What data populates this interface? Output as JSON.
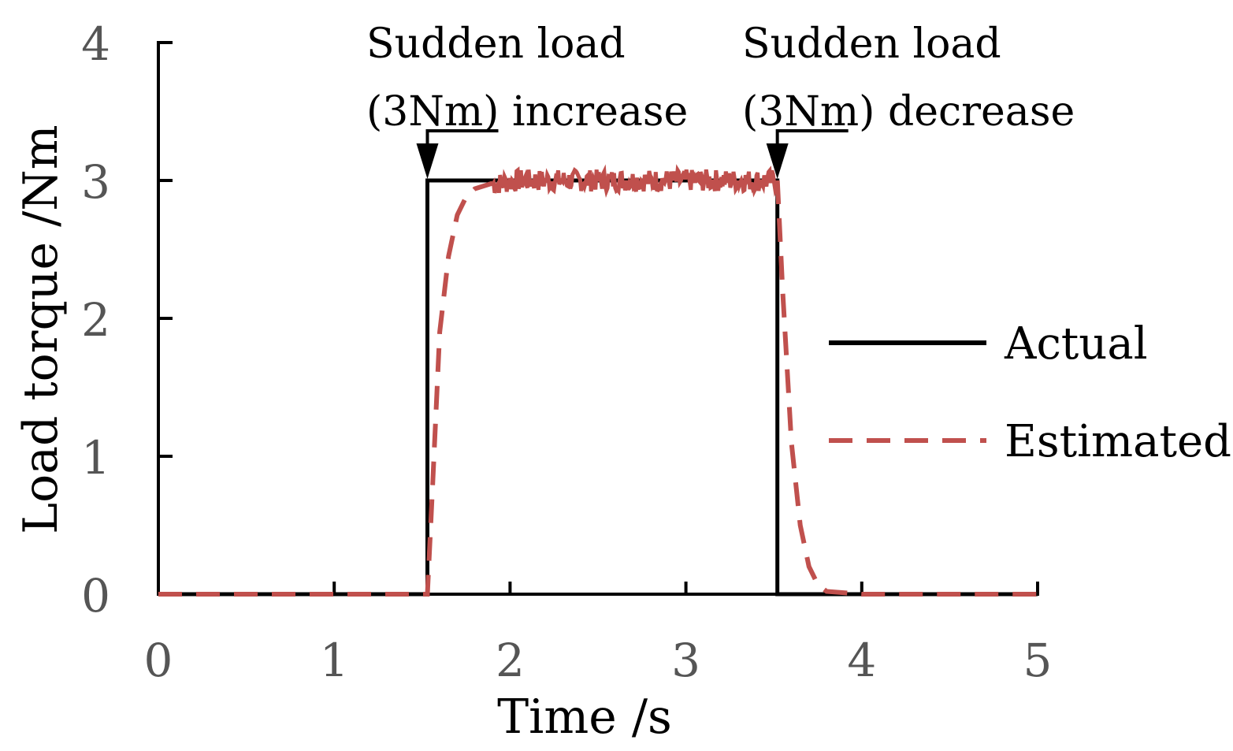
{
  "chart_data": {
    "type": "line",
    "xlabel": "Time /s",
    "ylabel": "Load torque /Nm",
    "xlim": [
      0,
      5
    ],
    "ylim": [
      0,
      4
    ],
    "xticks": [
      "0",
      "1",
      "2",
      "3",
      "4",
      "5"
    ],
    "yticks": [
      "0",
      "1",
      "2",
      "3",
      "4"
    ],
    "grid": false,
    "legend_position": "right",
    "series": [
      {
        "name": "Actual",
        "color": "#000000",
        "style": "solid",
        "x": [
          0,
          1.53,
          1.53,
          3.52,
          3.52,
          5
        ],
        "y": [
          0,
          0,
          3,
          3,
          0,
          0
        ]
      },
      {
        "name": "Estimated",
        "color": "#C0504D",
        "style": "dashed",
        "x": [
          0,
          1.53,
          1.56,
          1.6,
          1.65,
          1.7,
          1.75,
          1.8,
          1.9,
          2.0,
          2.5,
          3.0,
          3.52,
          3.55,
          3.6,
          3.65,
          3.7,
          3.75,
          3.8,
          4.0,
          5
        ],
        "y": [
          0,
          0,
          0.8,
          1.9,
          2.45,
          2.75,
          2.88,
          2.94,
          2.98,
          3.0,
          3.0,
          3.0,
          3.0,
          2.2,
          1.1,
          0.5,
          0.2,
          0.07,
          0.02,
          0,
          0
        ],
        "noisy_range": [
          1.9,
          3.52
        ]
      }
    ],
    "annotations": [
      {
        "lines": [
          "Sudden load",
          "(3Nm) increase"
        ],
        "arrow_x": 1.53,
        "arrow_y": 3
      },
      {
        "lines": [
          "Sudden load",
          "(3Nm) decrease"
        ],
        "arrow_x": 3.52,
        "arrow_y": 3
      }
    ]
  }
}
